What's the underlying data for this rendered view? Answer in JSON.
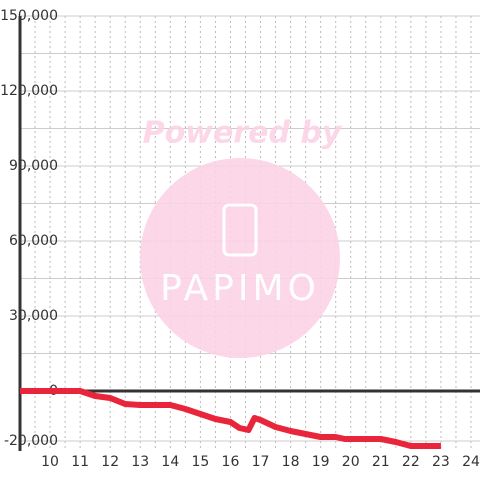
{
  "chart_data": {
    "type": "line",
    "watermark": {
      "line1": "Powered by",
      "line2": "PAPIMO"
    },
    "x": [
      9,
      11,
      11.5,
      12,
      12.5,
      13,
      14,
      14.5,
      15,
      15.5,
      16,
      16.3,
      16.6,
      16.8,
      17,
      17.5,
      18,
      18.5,
      19,
      19.5,
      19.8,
      21,
      21.5,
      22,
      23
    ],
    "series": [
      {
        "color": "#e8253a",
        "values": [
          0,
          0,
          -2000,
          -2800,
          -5200,
          -5600,
          -5600,
          -7200,
          -9200,
          -11200,
          -12400,
          -14800,
          -15600,
          -10800,
          -11600,
          -14400,
          -16000,
          -17200,
          -18400,
          -18400,
          -19200,
          -19200,
          -20400,
          -22000,
          -22000
        ]
      }
    ],
    "xlim": [
      9,
      24.3
    ],
    "ylim": [
      -24000,
      150000
    ],
    "xticks": [
      10,
      11,
      12,
      13,
      14,
      15,
      16,
      17,
      18,
      19,
      20,
      21,
      22,
      23,
      24
    ],
    "yticks": [
      {
        "value": 150000,
        "label": "150,000"
      },
      {
        "value": 120000,
        "label": "120,000"
      },
      {
        "value": 90000,
        "label": "90,000"
      },
      {
        "value": 60000,
        "label": "60,000"
      },
      {
        "value": 30000,
        "label": "30,000"
      },
      0,
      {
        "value": -20000,
        "label": "-20,000"
      }
    ],
    "minor_yticks": [
      135000,
      105000,
      75000,
      45000,
      15000
    ],
    "minor_xticks": [
      9.5,
      10.5,
      11.5,
      12.5,
      13.5,
      14.5,
      15.5,
      16.5,
      17.5,
      18.5,
      19.5,
      20.5,
      21.5,
      22.5,
      23.5
    ],
    "grid": true
  }
}
